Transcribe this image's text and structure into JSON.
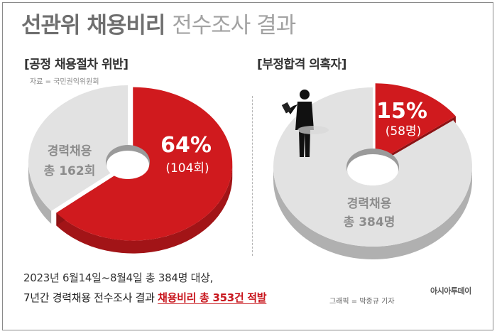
{
  "title": {
    "strong": "선관위 채용비리",
    "light": "전수조사 결과"
  },
  "source": "자료 = 국민권익위원회",
  "chart_data": [
    {
      "type": "pie",
      "title": "[공정 채용절차 위반]",
      "total_label": [
        "경력채용",
        "총 162회"
      ],
      "slices": [
        {
          "value": 64,
          "label_pct": "64%",
          "label_count": "(104회)",
          "color": "#d01a1e"
        },
        {
          "value": 36,
          "color": "#e2e2e2"
        }
      ]
    },
    {
      "type": "pie",
      "title": "[부정합격 의혹자]",
      "total_label": [
        "경력채용",
        "총 384명"
      ],
      "slices": [
        {
          "value": 15,
          "label_pct": "15%",
          "label_count": "(58명)",
          "color": "#d01a1e"
        },
        {
          "value": 85,
          "color": "#e2e2e2"
        }
      ]
    }
  ],
  "footer": {
    "line1": "2023년 6월14일~8월4일 총 384명 대상,",
    "line2_plain": "7년간 경력채용 전수조사 결과 ",
    "line2_highlight": "채용비리 총 353건 적발"
  },
  "credit": "그래픽 = 박종규 기자",
  "brand": "아시아투데이"
}
